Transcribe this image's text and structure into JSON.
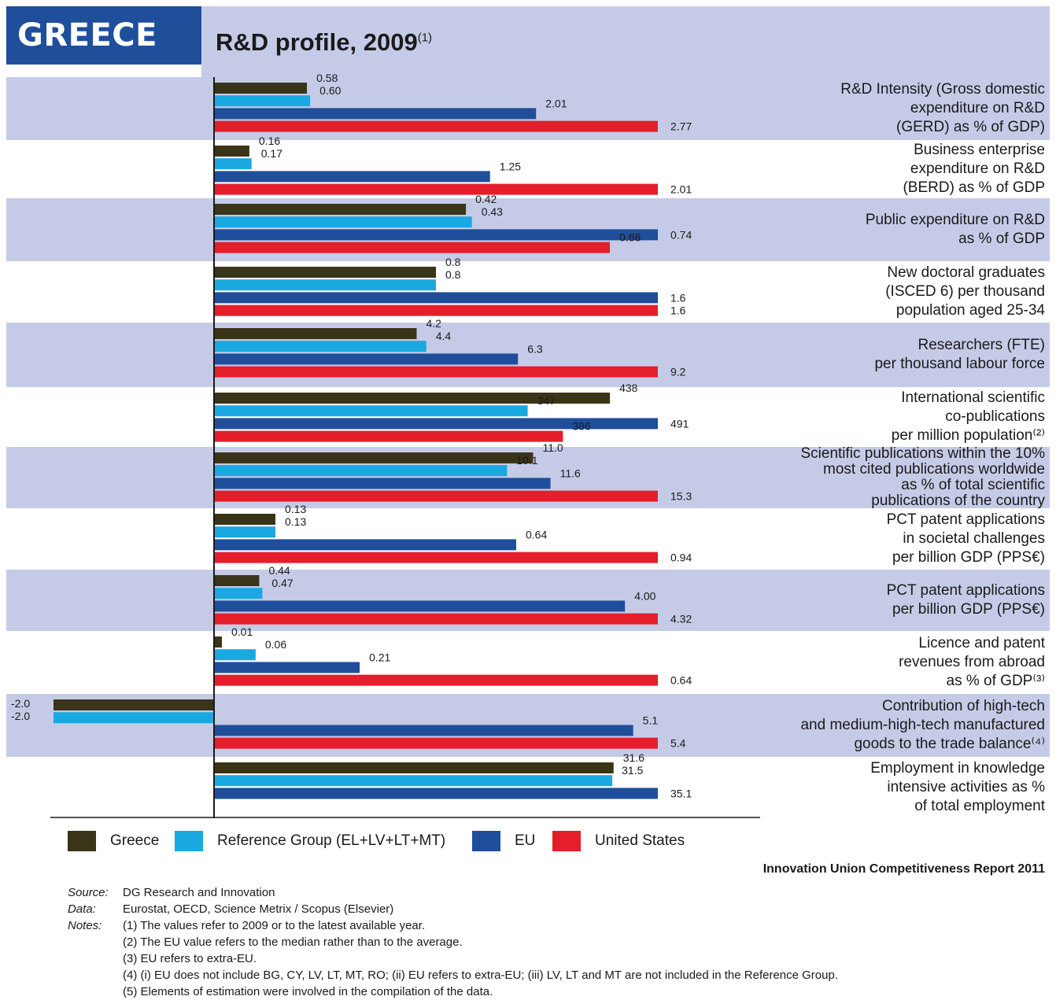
{
  "header": {
    "country": "GREECE",
    "title": "R&D profile, 2009",
    "title_note": "(1)"
  },
  "colors": {
    "band": "#c5cbe7",
    "title_bg": "#1f4e9a"
  },
  "chart_data": {
    "type": "bar",
    "orientation": "horizontal",
    "series": [
      {
        "name": "Greece",
        "color": "#3a3418",
        "values": [
          0.58,
          0.16,
          0.42,
          0.8,
          4.2,
          438,
          11.0,
          0.13,
          0.44,
          0.01,
          -2.0,
          31.6
        ]
      },
      {
        "name": "Reference Group (EL+LV+LT+MT)",
        "color": "#1aa8e0",
        "values": [
          0.6,
          0.17,
          0.43,
          0.8,
          4.4,
          347,
          10.1,
          0.13,
          0.47,
          0.06,
          -2.0,
          31.5
        ]
      },
      {
        "name": "EU",
        "color": "#1f4e9a",
        "values": [
          2.01,
          1.25,
          0.74,
          1.6,
          6.3,
          491,
          11.6,
          0.64,
          4.0,
          0.21,
          5.1,
          35.1
        ]
      },
      {
        "name": "United States",
        "color": "#e41e2b",
        "values": [
          2.77,
          2.01,
          0.66,
          1.6,
          9.2,
          386,
          15.3,
          0.94,
          4.32,
          0.64,
          5.4,
          null
        ]
      }
    ],
    "value_labels": [
      [
        "0.58",
        "0.60",
        "2.01",
        "2.77"
      ],
      [
        "0.16",
        "0.17",
        "1.25",
        "2.01"
      ],
      [
        "0.42",
        "0.43",
        "0.74",
        "0.66"
      ],
      [
        "0.8",
        "0.8",
        "1.6",
        "1.6"
      ],
      [
        "4.2",
        "4.4",
        "6.3",
        "9.2"
      ],
      [
        "438",
        "347",
        "491",
        "386"
      ],
      [
        "11.0",
        "10.1",
        "11.6",
        "15.3"
      ],
      [
        "0.13",
        "0.13",
        "0.64",
        "0.94"
      ],
      [
        "0.44",
        "0.47",
        "4.00",
        "4.32"
      ],
      [
        "0.01",
        "0.06",
        "0.21",
        "0.64"
      ],
      [
        "-2.0",
        "-2.0",
        "5.1",
        "5.4"
      ],
      [
        "31.6",
        "31.5",
        "35.1",
        ""
      ]
    ],
    "indicators": [
      [
        "R&D Intensity (Gross domestic",
        "expenditure on R&D",
        "(GERD) as % of GDP)"
      ],
      [
        "Business enterprise",
        "expenditure on R&D",
        "(BERD) as % of GDP"
      ],
      [
        "Public expenditure on R&D",
        "as % of GDP"
      ],
      [
        "New doctoral graduates",
        "(ISCED 6) per thousand",
        "population aged 25-34"
      ],
      [
        "Researchers (FTE)",
        "per thousand labour force"
      ],
      [
        "International scientific",
        "co-publications",
        "per million population⁽²⁾"
      ],
      [
        "Scientific publications within the 10%",
        "most cited publications worldwide",
        "as % of total scientific",
        "publications of the country"
      ],
      [
        "PCT patent applications",
        "in societal challenges",
        "per billion GDP (PPS€)"
      ],
      [
        "PCT patent applications",
        "per billion GDP (PPS€)"
      ],
      [
        "Licence and patent",
        "revenues from abroad",
        "as % of GDP⁽³⁾"
      ],
      [
        "Contribution of high-tech",
        "and medium-high-tech manufactured",
        "goods to the trade balance⁽⁴⁾"
      ],
      [
        "Employment in knowledge",
        "intensive activities as %",
        "of total employment"
      ]
    ],
    "legend_position": "bottom"
  },
  "footer": {
    "report": "Innovation Union Competitiveness Report 2011",
    "source_key": "Source:",
    "source": "DG Research and Innovation",
    "data_key": "Data:",
    "data": "Eurostat, OECD, Science Metrix / Scopus (Elsevier)",
    "notes_key": "Notes:",
    "notes": [
      "(1) The values refer to 2009 or to the latest available year.",
      "(2) The EU value refers to the median rather than to the average.",
      "(3) EU refers to extra-EU.",
      "(4) (i) EU does not include BG, CY, LV, LT, MT, RO; (ii) EU refers to extra-EU; (iii) LV, LT and MT are not included in the Reference Group.",
      "(5) Elements of estimation were involved in the compilation of the data."
    ]
  }
}
